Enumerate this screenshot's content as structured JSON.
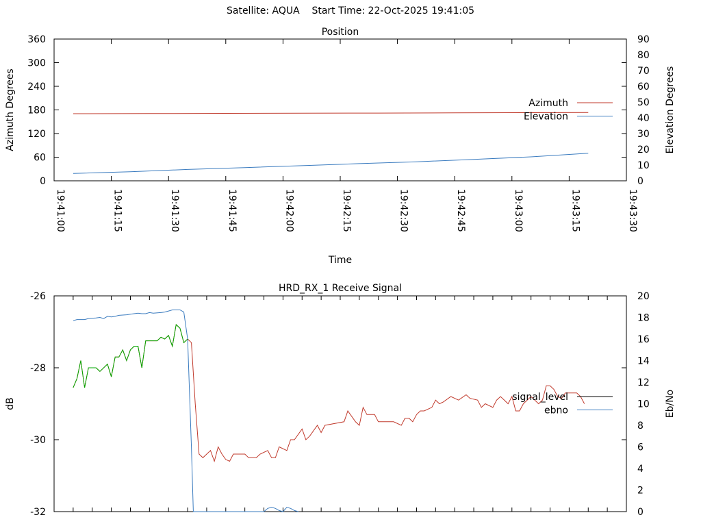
{
  "header": {
    "title": "Satellite: AQUA    Start Time: 22-Oct-2025 19:41:05"
  },
  "chart_data": [
    {
      "type": "line",
      "title": "Position",
      "xlabel": "Time",
      "ylabel": "Azimuth Degrees",
      "y2label": "Elevation Degrees",
      "xlim": [
        "19:41:00",
        "19:43:30"
      ],
      "x_tick_labels": [
        "19:41:00",
        "19:41:15",
        "19:41:30",
        "19:41:45",
        "19:42:00",
        "19:42:15",
        "19:42:30",
        "19:42:45",
        "19:43:00",
        "19:43:15",
        "19:43:30"
      ],
      "ylim": [
        0,
        360
      ],
      "y_ticks": [
        0,
        60,
        120,
        180,
        240,
        300,
        360
      ],
      "y2lim": [
        0,
        90
      ],
      "y2_ticks": [
        0,
        10,
        20,
        30,
        40,
        50,
        60,
        70,
        80,
        90
      ],
      "grid": false,
      "legend_position": "right",
      "series": [
        {
          "name": "Azimuth",
          "axis": "left",
          "color": "#c0392b",
          "points": [
            [
              "19:41:05",
              170.5
            ],
            [
              "19:41:25",
              170.8
            ],
            [
              "19:41:45",
              171.3
            ],
            [
              "19:42:05",
              171.6
            ],
            [
              "19:42:25",
              172.0
            ],
            [
              "19:42:45",
              172.6
            ],
            [
              "19:43:05",
              173.1
            ],
            [
              "19:43:20",
              173.4
            ]
          ]
        },
        {
          "name": "Elevation",
          "axis": "right",
          "color": "#3a7bbf",
          "points": [
            [
              "19:41:05",
              4.7
            ],
            [
              "19:41:20",
              5.8
            ],
            [
              "19:41:35",
              7.2
            ],
            [
              "19:41:50",
              8.4
            ],
            [
              "19:42:05",
              9.6
            ],
            [
              "19:42:20",
              10.9
            ],
            [
              "19:42:35",
              12.1
            ],
            [
              "19:42:50",
              13.6
            ],
            [
              "19:43:05",
              15.2
            ],
            [
              "19:43:20",
              17.5
            ]
          ]
        }
      ]
    },
    {
      "type": "line",
      "title": "HRD_RX_1 Receive Signal",
      "xlabel": "",
      "ylabel": "dB",
      "y2label": "Eb/No",
      "xlim": [
        "19:41:00",
        "19:43:30"
      ],
      "ylim": [
        -32,
        -26
      ],
      "y_ticks": [
        -32,
        -30,
        -28,
        -26
      ],
      "y2lim": [
        0,
        20
      ],
      "y2_ticks": [
        0,
        2,
        4,
        6,
        8,
        10,
        12,
        14,
        16,
        18,
        20
      ],
      "grid": false,
      "legend_position": "right",
      "legend_colors": {
        "signal_level": "#000000",
        "ebno": "#3a7bbf"
      },
      "series": [
        {
          "name": "signal_level",
          "axis": "left",
          "color": "#c0392b",
          "points": [
            [
              "19:41:05",
              -28.55
            ],
            [
              "19:41:06",
              -28.3
            ],
            [
              "19:41:07",
              -27.8
            ],
            [
              "19:41:08",
              -28.55
            ],
            [
              "19:41:09",
              -28.0
            ],
            [
              "19:41:11",
              -28.0
            ],
            [
              "19:41:12",
              -28.1
            ],
            [
              "19:41:14",
              -27.9
            ],
            [
              "19:41:15",
              -28.25
            ],
            [
              "19:41:16",
              -27.7
            ],
            [
              "19:41:17",
              -27.7
            ],
            [
              "19:41:18",
              -27.5
            ],
            [
              "19:41:19",
              -27.8
            ],
            [
              "19:41:20",
              -27.5
            ],
            [
              "19:41:21",
              -27.4
            ],
            [
              "19:41:22",
              -27.4
            ],
            [
              "19:41:23",
              -28.0
            ],
            [
              "19:41:24",
              -27.25
            ],
            [
              "19:41:27",
              -27.25
            ],
            [
              "19:41:28",
              -27.15
            ],
            [
              "19:41:29",
              -27.2
            ],
            [
              "19:41:30",
              -27.1
            ],
            [
              "19:41:31",
              -27.4
            ],
            [
              "19:41:32",
              -26.8
            ],
            [
              "19:41:33",
              -26.9
            ],
            [
              "19:41:34",
              -27.3
            ],
            [
              "19:41:35",
              -27.2
            ],
            [
              "19:41:36",
              -27.3
            ],
            [
              "19:41:37",
              -29.0
            ],
            [
              "19:41:38",
              -30.4
            ],
            [
              "19:41:39",
              -30.5
            ],
            [
              "19:41:41",
              -30.3
            ],
            [
              "19:41:42",
              -30.6
            ],
            [
              "19:41:43",
              -30.2
            ],
            [
              "19:41:44",
              -30.4
            ],
            [
              "19:41:45",
              -30.55
            ],
            [
              "19:41:46",
              -30.6
            ],
            [
              "19:41:47",
              -30.4
            ],
            [
              "19:41:50",
              -30.4
            ],
            [
              "19:41:51",
              -30.5
            ],
            [
              "19:41:53",
              -30.5
            ],
            [
              "19:41:54",
              -30.4
            ],
            [
              "19:41:56",
              -30.3
            ],
            [
              "19:41:57",
              -30.5
            ],
            [
              "19:41:58",
              -30.5
            ],
            [
              "19:41:59",
              -30.2
            ],
            [
              "19:42:01",
              -30.3
            ],
            [
              "19:42:02",
              -30.0
            ],
            [
              "19:42:03",
              -30.0
            ],
            [
              "19:42:05",
              -29.7
            ],
            [
              "19:42:06",
              -30.0
            ],
            [
              "19:42:07",
              -29.9
            ],
            [
              "19:42:09",
              -29.6
            ],
            [
              "19:42:10",
              -29.8
            ],
            [
              "19:42:11",
              -29.6
            ],
            [
              "19:42:16",
              -29.5
            ],
            [
              "19:42:17",
              -29.2
            ],
            [
              "19:42:19",
              -29.5
            ],
            [
              "19:42:20",
              -29.6
            ],
            [
              "19:42:21",
              -29.1
            ],
            [
              "19:42:22",
              -29.3
            ],
            [
              "19:42:24",
              -29.3
            ],
            [
              "19:42:25",
              -29.5
            ],
            [
              "19:42:29",
              -29.5
            ],
            [
              "19:42:31",
              -29.6
            ],
            [
              "19:42:32",
              -29.4
            ],
            [
              "19:42:33",
              -29.4
            ],
            [
              "19:42:34",
              -29.5
            ],
            [
              "19:42:35",
              -29.3
            ],
            [
              "19:42:36",
              -29.2
            ],
            [
              "19:42:37",
              -29.2
            ],
            [
              "19:42:39",
              -29.1
            ],
            [
              "19:42:40",
              -28.9
            ],
            [
              "19:42:41",
              -29.0
            ],
            [
              "19:42:42",
              -28.95
            ],
            [
              "19:42:44",
              -28.8
            ],
            [
              "19:42:45",
              -28.85
            ],
            [
              "19:42:46",
              -28.9
            ],
            [
              "19:42:48",
              -28.75
            ],
            [
              "19:42:49",
              -28.85
            ],
            [
              "19:42:51",
              -28.9
            ],
            [
              "19:42:52",
              -29.1
            ],
            [
              "19:42:53",
              -29.0
            ],
            [
              "19:42:55",
              -29.1
            ],
            [
              "19:42:56",
              -28.9
            ],
            [
              "19:42:57",
              -28.8
            ],
            [
              "19:42:58",
              -28.9
            ],
            [
              "19:42:59",
              -29.0
            ],
            [
              "19:43:00",
              -28.8
            ],
            [
              "19:43:01",
              -29.2
            ],
            [
              "19:43:02",
              -29.2
            ],
            [
              "19:43:03",
              -29.0
            ],
            [
              "19:43:04",
              -28.9
            ],
            [
              "19:43:05",
              -28.8
            ],
            [
              "19:43:06",
              -28.9
            ],
            [
              "19:43:07",
              -29.0
            ],
            [
              "19:43:08",
              -28.9
            ],
            [
              "19:43:09",
              -28.5
            ],
            [
              "19:43:10",
              -28.5
            ],
            [
              "19:43:11",
              -28.6
            ],
            [
              "19:43:12",
              -28.8
            ],
            [
              "19:43:13",
              -28.85
            ],
            [
              "19:43:14",
              -28.7
            ],
            [
              "19:43:17",
              -28.7
            ],
            [
              "19:43:18",
              -28.8
            ],
            [
              "19:43:19",
              -29.0
            ]
          ]
        },
        {
          "name": "ebno",
          "axis": "right",
          "color": "#3a7bbf",
          "points": [
            [
              "19:41:05",
              17.7
            ],
            [
              "19:41:06",
              17.8
            ],
            [
              "19:41:07",
              17.8
            ],
            [
              "19:41:08",
              17.8
            ],
            [
              "19:41:09",
              17.9
            ],
            [
              "19:41:11",
              17.95
            ],
            [
              "19:41:12",
              18.0
            ],
            [
              "19:41:13",
              17.9
            ],
            [
              "19:41:14",
              18.1
            ],
            [
              "19:41:15",
              18.05
            ],
            [
              "19:41:16",
              18.1
            ],
            [
              "19:41:17",
              18.2
            ],
            [
              "19:41:19",
              18.25
            ],
            [
              "19:41:20",
              18.3
            ],
            [
              "19:41:21",
              18.35
            ],
            [
              "19:41:22",
              18.4
            ],
            [
              "19:41:23",
              18.35
            ],
            [
              "19:41:24",
              18.35
            ],
            [
              "19:41:25",
              18.45
            ],
            [
              "19:41:26",
              18.4
            ],
            [
              "19:41:28",
              18.45
            ],
            [
              "19:41:29",
              18.5
            ],
            [
              "19:41:30",
              18.6
            ],
            [
              "19:41:31",
              18.7
            ],
            [
              "19:41:33",
              18.7
            ],
            [
              "19:41:34",
              18.5
            ],
            [
              "19:41:35",
              16.0
            ],
            [
              "19:41:36",
              6.0
            ],
            [
              "19:41:36.5",
              0.0
            ],
            [
              "19:41:55",
              0.0
            ],
            [
              "19:41:56",
              0.3
            ],
            [
              "19:41:57",
              0.4
            ],
            [
              "19:41:58",
              0.3
            ],
            [
              "19:41:59",
              0.1
            ],
            [
              "19:42:00",
              0.0
            ],
            [
              "19:42:01",
              0.4
            ],
            [
              "19:42:02",
              0.3
            ],
            [
              "19:42:03",
              0.1
            ],
            [
              "19:42:04",
              0.0
            ]
          ]
        },
        {
          "name": "",
          "axis": "left",
          "color": "#00aa00",
          "points": [
            [
              "19:41:05",
              -28.55
            ],
            [
              "19:41:06",
              -28.3
            ],
            [
              "19:41:07",
              -27.8
            ],
            [
              "19:41:08",
              -28.55
            ],
            [
              "19:41:09",
              -28.0
            ],
            [
              "19:41:11",
              -28.0
            ],
            [
              "19:41:12",
              -28.1
            ],
            [
              "19:41:14",
              -27.9
            ],
            [
              "19:41:15",
              -28.25
            ],
            [
              "19:41:16",
              -27.7
            ],
            [
              "19:41:17",
              -27.7
            ],
            [
              "19:41:18",
              -27.5
            ],
            [
              "19:41:19",
              -27.8
            ],
            [
              "19:41:20",
              -27.5
            ],
            [
              "19:41:21",
              -27.4
            ],
            [
              "19:41:22",
              -27.4
            ],
            [
              "19:41:23",
              -28.0
            ],
            [
              "19:41:24",
              -27.25
            ],
            [
              "19:41:27",
              -27.25
            ],
            [
              "19:41:28",
              -27.15
            ],
            [
              "19:41:29",
              -27.2
            ],
            [
              "19:41:30",
              -27.1
            ],
            [
              "19:41:31",
              -27.4
            ],
            [
              "19:41:32",
              -26.8
            ],
            [
              "19:41:33",
              -26.9
            ],
            [
              "19:41:34",
              -27.3
            ],
            [
              "19:41:35",
              -27.2
            ]
          ]
        }
      ]
    }
  ]
}
